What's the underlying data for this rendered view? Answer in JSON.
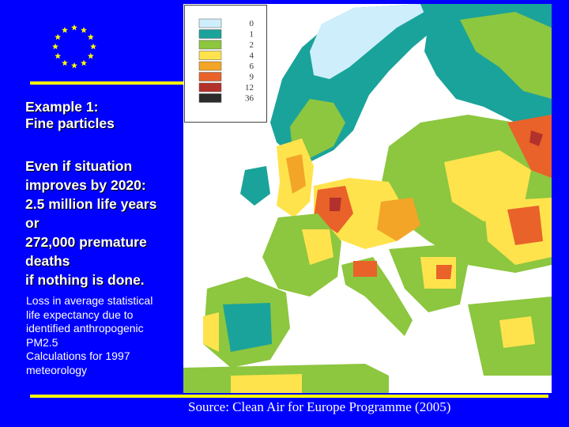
{
  "heading": [
    "Example 1:",
    "Fine particles"
  ],
  "body_lines": [
    "Even if situation",
    "improves by 2020:",
    "2.5 million life years",
    "or",
    "272,000 premature",
    "deaths",
    "if nothing is done."
  ],
  "caption_lines": [
    "Loss in average statistical",
    "life expectancy due to",
    "identified anthropogenic",
    "PM2.5",
    "Calculations for 1997",
    "meteorology"
  ],
  "legend": {
    "items": [
      {
        "label": "0",
        "color": "#cfeefc"
      },
      {
        "label": "1",
        "color": "#1aa39a"
      },
      {
        "label": "2",
        "color": "#8dc63f"
      },
      {
        "label": "4",
        "color": "#ffe34d"
      },
      {
        "label": "6",
        "color": "#f3a528"
      },
      {
        "label": "9",
        "color": "#e8622a"
      },
      {
        "label": "12",
        "color": "#b3312c"
      },
      {
        "label": "36",
        "color": "#2b2b2b"
      }
    ]
  },
  "source": "Source: Clean Air for Europe Programme (2005)",
  "colors": {
    "background": "#0000ff",
    "accent_rule": "#ffff00",
    "flag_star": "#ffff00",
    "sea": "#ffffff"
  }
}
